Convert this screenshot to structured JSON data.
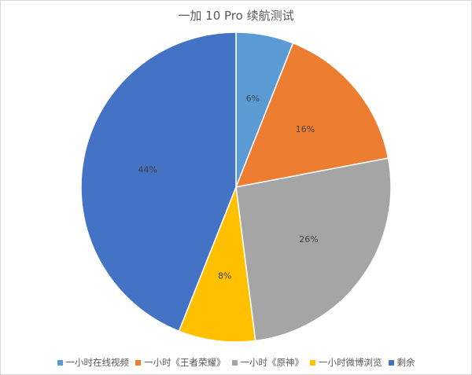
{
  "chart_data": {
    "type": "pie",
    "title": "一加 10 Pro 续航测试",
    "categories": [
      "一小时在线视频",
      "一小时《王者荣耀》",
      "一小时《原神》",
      "一小时微博浏览",
      "剩余"
    ],
    "values": [
      6,
      16,
      26,
      8,
      44
    ],
    "data_labels": [
      "6%",
      "16%",
      "26%",
      "8%",
      "44%"
    ],
    "colors": [
      "#5b9bd5",
      "#ed7d31",
      "#a5a5a5",
      "#ffc000",
      "#4472c4"
    ],
    "legend_position": "bottom"
  }
}
